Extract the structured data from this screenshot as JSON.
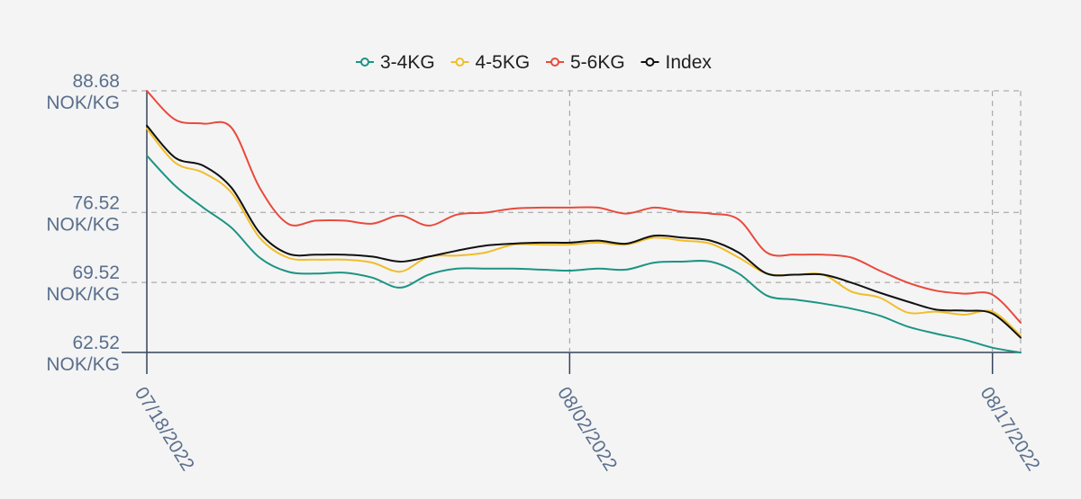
{
  "chart_data": {
    "type": "line",
    "title": "",
    "xlabel": "",
    "ylabel": "",
    "x": [
      "07/18/2022",
      "07/19/2022",
      "07/20/2022",
      "07/21/2022",
      "07/22/2022",
      "07/23/2022",
      "07/24/2022",
      "07/25/2022",
      "07/26/2022",
      "07/27/2022",
      "07/28/2022",
      "07/29/2022",
      "07/30/2022",
      "07/31/2022",
      "08/01/2022",
      "08/02/2022",
      "08/03/2022",
      "08/04/2022",
      "08/05/2022",
      "08/06/2022",
      "08/07/2022",
      "08/08/2022",
      "08/09/2022",
      "08/10/2022",
      "08/11/2022",
      "08/12/2022",
      "08/13/2022",
      "08/14/2022",
      "08/15/2022",
      "08/16/2022",
      "08/17/2022",
      "08/18/2022"
    ],
    "x_ticks": [
      "07/18/2022",
      "08/02/2022",
      "08/17/2022"
    ],
    "y_ticks": [
      {
        "value": 88.68,
        "label_value": "88.68",
        "label_unit": "NOK/KG"
      },
      {
        "value": 76.52,
        "label_value": "76.52",
        "label_unit": "NOK/KG"
      },
      {
        "value": 69.52,
        "label_value": "69.52",
        "label_unit": "NOK/KG"
      },
      {
        "value": 62.52,
        "label_value": "62.52",
        "label_unit": "NOK/KG"
      }
    ],
    "ylim": [
      62.52,
      88.68
    ],
    "grid": true,
    "legend_position": "top-center",
    "series": [
      {
        "name": "3-4KG",
        "color": "#1b9484",
        "values": [
          82.2,
          79.2,
          77.0,
          75.0,
          72.0,
          70.6,
          70.4,
          70.5,
          70.0,
          69.0,
          70.3,
          70.9,
          70.9,
          70.9,
          70.8,
          70.7,
          70.9,
          70.8,
          71.5,
          71.6,
          71.6,
          70.4,
          68.2,
          67.8,
          67.4,
          66.9,
          66.2,
          65.1,
          64.4,
          63.8,
          63.0,
          62.5
        ]
      },
      {
        "name": "4-5KG",
        "color": "#f0be29",
        "values": [
          84.9,
          81.5,
          80.5,
          78.5,
          74.0,
          72.0,
          71.8,
          71.8,
          71.5,
          70.6,
          72.1,
          72.2,
          72.5,
          73.3,
          73.3,
          73.3,
          73.5,
          73.3,
          74.0,
          73.7,
          73.4,
          72.0,
          70.4,
          70.3,
          70.3,
          68.6,
          68.0,
          66.5,
          66.6,
          66.3,
          66.6,
          64.2
        ]
      },
      {
        "name": "5-6KG",
        "color": "#e94a3c",
        "values": [
          88.68,
          85.8,
          85.4,
          85.0,
          79.0,
          75.4,
          75.7,
          75.7,
          75.4,
          76.2,
          75.2,
          76.3,
          76.5,
          76.9,
          77.0,
          77.0,
          77.0,
          76.4,
          77.0,
          76.6,
          76.4,
          75.8,
          72.5,
          72.3,
          72.3,
          72.0,
          70.7,
          69.5,
          68.7,
          68.4,
          68.3,
          65.5
        ]
      },
      {
        "name": "Index",
        "color": "#111111",
        "values": [
          85.2,
          82.0,
          81.2,
          79.0,
          74.5,
          72.4,
          72.3,
          72.3,
          72.1,
          71.6,
          72.1,
          72.7,
          73.2,
          73.4,
          73.5,
          73.5,
          73.7,
          73.4,
          74.2,
          74.0,
          73.7,
          72.5,
          70.4,
          70.3,
          70.3,
          69.5,
          68.5,
          67.6,
          66.8,
          66.7,
          66.4,
          64.0
        ]
      }
    ]
  }
}
